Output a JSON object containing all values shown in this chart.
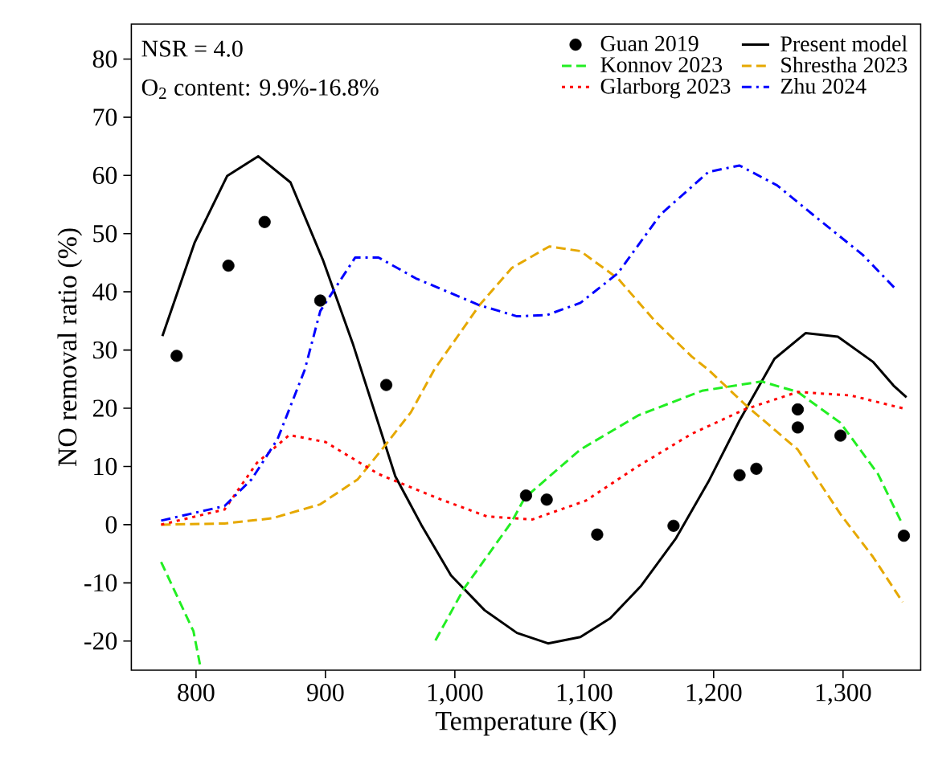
{
  "chart_data": {
    "type": "line",
    "xlabel": "Temperature (K)",
    "ylabel": "NO removal ratio (%)",
    "xlim": [
      750,
      1360
    ],
    "ylim": [
      -25,
      86
    ],
    "xticks": [
      800,
      900,
      {
        "value": 1000,
        "label": "1,000"
      },
      {
        "value": 1100,
        "label": "1,100"
      },
      {
        "value": 1200,
        "label": "1,200"
      },
      {
        "value": 1300,
        "label": "1,300"
      }
    ],
    "yticks": [
      -20,
      -10,
      0,
      10,
      20,
      30,
      40,
      50,
      60,
      70,
      80
    ],
    "grid": false,
    "legend": "top right",
    "annotations": [
      "NSR = 4.0",
      "O$_{2}$ content: 9.9%-16.8%"
    ],
    "series": [
      {
        "name": "Guan 2019",
        "type": "scatter",
        "marker": "circle",
        "color": "#000000",
        "x": [
          785,
          825,
          853,
          896,
          947,
          1055,
          1071,
          1110,
          1169,
          1220,
          1233,
          1265,
          1265,
          1298,
          1347
        ],
        "values": [
          29,
          44.5,
          52,
          38.5,
          24,
          5,
          4.3,
          -1.7,
          -0.2,
          8.5,
          9.6,
          19.8,
          16.7,
          15.3,
          -1.9
        ]
      },
      {
        "name": "Present model",
        "line_style": "solid",
        "color": "#000000",
        "x": [
          774,
          799,
          824,
          848,
          873,
          898,
          921,
          954,
          974,
          997,
          1023,
          1048,
          1072,
          1097,
          1120,
          1144,
          1171,
          1196,
          1220,
          1247,
          1271,
          1296,
          1323,
          1339,
          1349
        ],
        "values": [
          32.4,
          48.5,
          59.9,
          63.3,
          58.8,
          45.5,
          31.2,
          8.3,
          0,
          -8.7,
          -14.7,
          -18.6,
          -20.4,
          -19.3,
          -16.1,
          -10.5,
          -2.3,
          7.4,
          17.9,
          28.5,
          32.9,
          32.3,
          28,
          23.9,
          21.9
        ]
      },
      {
        "name": "Konnov 2023",
        "line_style": "dashed",
        "color": "#22ee22",
        "x": [
          773,
          798,
          803,
          890,
          985,
          1007,
          1044,
          1054,
          1097,
          1142,
          1191,
          1237,
          1265,
          1298,
          1327,
          1346
        ],
        "values": [
          -6.4,
          -18.3,
          -24,
          null,
          -19.9,
          -11,
          0.5,
          4.6,
          12.9,
          18.8,
          23,
          24.6,
          22.8,
          17.5,
          8.7,
          0
        ]
      },
      {
        "name": "Shrestha 2023",
        "line_style": "dashed",
        "color": "#e6a800",
        "x": [
          773,
          822,
          859,
          896,
          925,
          945,
          966,
          984,
          1019,
          1044,
          1073,
          1097,
          1126,
          1155,
          1183,
          1196,
          1224,
          1265,
          1298,
          1323,
          1346
        ],
        "values": [
          0,
          0.2,
          1.1,
          3.5,
          7.8,
          13.3,
          19.3,
          26.6,
          37.7,
          44.1,
          47.8,
          47,
          42.3,
          34.9,
          28.9,
          26.6,
          20.7,
          12.9,
          1.8,
          -5.5,
          -13.3
        ]
      },
      {
        "name": "Glarborg 2023",
        "line_style": "dotted",
        "color": "#ff0000",
        "x": [
          773,
          822,
          847,
          872,
          900,
          941,
          986,
          1025,
          1060,
          1101,
          1142,
          1183,
          1224,
          1265,
          1306,
          1346
        ],
        "values": [
          0,
          2.6,
          10.6,
          15.4,
          14.2,
          8.7,
          4.6,
          1.4,
          0.9,
          4.1,
          10.1,
          15.6,
          19.8,
          22.8,
          22.2,
          20
        ]
      },
      {
        "name": "Zhu 2024",
        "line_style": "dashdot",
        "color": "#0000ff",
        "x": [
          773,
          822,
          843,
          863,
          884,
          896,
          923,
          941,
          970,
          1019,
          1048,
          1071,
          1097,
          1126,
          1159,
          1196,
          1220,
          1249,
          1282,
          1315,
          1341
        ],
        "values": [
          0.7,
          3.2,
          7.8,
          14.7,
          26.6,
          36.7,
          45.9,
          45.9,
          42.3,
          37.7,
          35.8,
          36,
          38.1,
          43.2,
          53.3,
          60.6,
          61.7,
          58.3,
          52.3,
          46.4,
          40.4
        ]
      }
    ]
  }
}
